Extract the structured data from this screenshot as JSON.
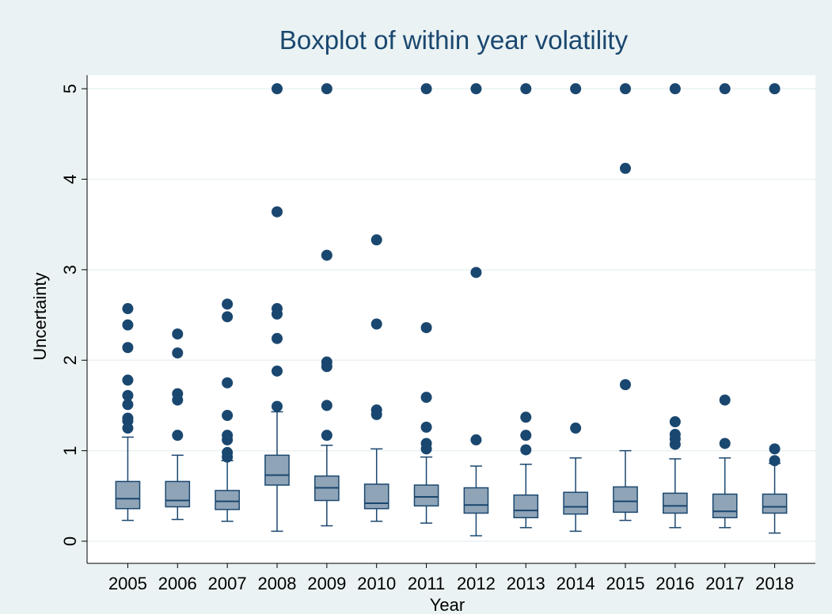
{
  "chart_data": {
    "type": "box",
    "title": "Boxplot of within year volatility",
    "x_label": "Year",
    "y_label": "Uncertainty",
    "categories": [
      "2005",
      "2006",
      "2007",
      "2008",
      "2009",
      "2010",
      "2011",
      "2012",
      "2013",
      "2014",
      "2015",
      "2016",
      "2017",
      "2018"
    ],
    "boxes": [
      {
        "min": 0.23,
        "q1": 0.36,
        "median": 0.47,
        "q3": 0.66,
        "max": 1.15,
        "outliers": [
          1.25,
          1.33,
          1.36,
          1.51,
          1.61,
          1.78,
          2.14,
          2.39,
          2.57
        ]
      },
      {
        "min": 0.24,
        "q1": 0.38,
        "median": 0.45,
        "q3": 0.66,
        "max": 0.95,
        "outliers": [
          1.17,
          1.56,
          1.63,
          2.08,
          2.29
        ]
      },
      {
        "min": 0.22,
        "q1": 0.35,
        "median": 0.44,
        "q3": 0.56,
        "max": 0.89,
        "outliers": [
          0.93,
          0.98,
          1.12,
          1.17,
          1.39,
          1.75,
          2.48,
          2.62
        ]
      },
      {
        "min": 0.11,
        "q1": 0.62,
        "median": 0.73,
        "q3": 0.95,
        "max": 1.43,
        "outliers": [
          1.49,
          1.88,
          2.24,
          2.51,
          2.57,
          3.64,
          5
        ]
      },
      {
        "min": 0.17,
        "q1": 0.45,
        "median": 0.59,
        "q3": 0.72,
        "max": 1.06,
        "outliers": [
          1.17,
          1.5,
          1.93,
          1.98,
          3.16,
          5
        ]
      },
      {
        "min": 0.22,
        "q1": 0.36,
        "median": 0.42,
        "q3": 0.63,
        "max": 1.02,
        "outliers": [
          1.4,
          1.45,
          2.4,
          3.33
        ]
      },
      {
        "min": 0.2,
        "q1": 0.39,
        "median": 0.49,
        "q3": 0.62,
        "max": 0.93,
        "outliers": [
          1.02,
          1.08,
          1.26,
          1.59,
          2.36,
          5
        ]
      },
      {
        "min": 0.06,
        "q1": 0.31,
        "median": 0.4,
        "q3": 0.59,
        "max": 0.83,
        "outliers": [
          1.12,
          2.97,
          5
        ]
      },
      {
        "min": 0.15,
        "q1": 0.26,
        "median": 0.34,
        "q3": 0.51,
        "max": 0.85,
        "outliers": [
          1.01,
          1.17,
          1.37,
          5
        ]
      },
      {
        "min": 0.11,
        "q1": 0.3,
        "median": 0.38,
        "q3": 0.54,
        "max": 0.92,
        "outliers": [
          1.25,
          5
        ]
      },
      {
        "min": 0.23,
        "q1": 0.32,
        "median": 0.44,
        "q3": 0.6,
        "max": 1.0,
        "outliers": [
          1.73,
          4.12,
          5
        ]
      },
      {
        "min": 0.15,
        "q1": 0.31,
        "median": 0.39,
        "q3": 0.53,
        "max": 0.91,
        "outliers": [
          1.07,
          1.13,
          1.18,
          1.32,
          5
        ]
      },
      {
        "min": 0.15,
        "q1": 0.26,
        "median": 0.33,
        "q3": 0.52,
        "max": 0.92,
        "outliers": [
          1.08,
          1.56,
          5
        ]
      },
      {
        "min": 0.09,
        "q1": 0.31,
        "median": 0.38,
        "q3": 0.52,
        "max": 0.86,
        "outliers": [
          0.89,
          1.02,
          5
        ]
      }
    ],
    "color": "#8fa4b7",
    "line_color": "#1a476f",
    "ylim": [
      -0.245,
      5.15
    ],
    "yticks": [
      0,
      1,
      2,
      3,
      4,
      5
    ],
    "grid": true
  }
}
